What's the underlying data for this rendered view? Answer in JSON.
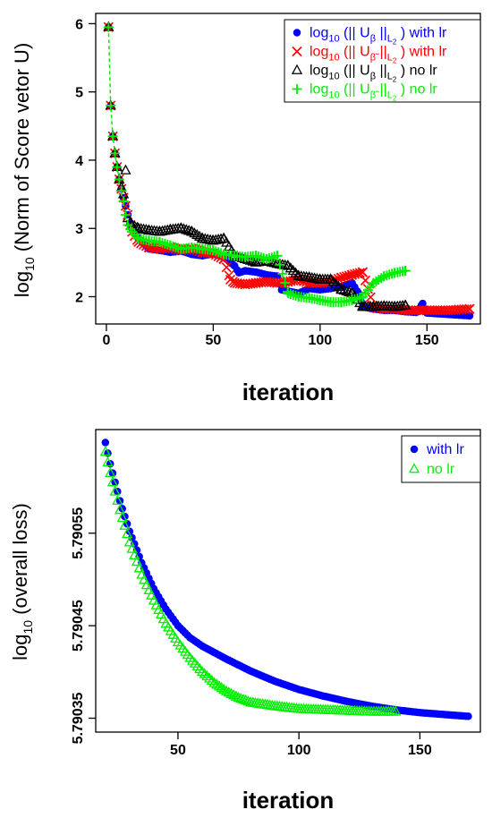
{
  "colors": {
    "blue": "#0000ff",
    "red": "#ff0000",
    "black": "#000000",
    "green": "#00ee00"
  },
  "chart_data": [
    {
      "type": "scatter",
      "title": "",
      "xlabel": "iteration",
      "ylabel": "log10 (Norm of Score vetor U)",
      "ylabel_main": "log",
      "ylabel_sub": "10",
      "ylabel_rest": " (Norm of Score vetor U)",
      "xlim": [
        -5,
        175
      ],
      "ylim": [
        1.6,
        6.15
      ],
      "xticks": [
        0,
        50,
        100,
        150
      ],
      "yticks": [
        2,
        3,
        4,
        5,
        6
      ],
      "grid": false,
      "legend_position": "top-right",
      "series": [
        {
          "name": "log10 (|| Uβ ||L2 ) with lr",
          "label_rest": " with lr",
          "marker": "circle",
          "color": "blue",
          "x": [
            1,
            2,
            3,
            4,
            5,
            6,
            7,
            8,
            9,
            10,
            12,
            15,
            20,
            25,
            30,
            35,
            40,
            45,
            50,
            55,
            60,
            62,
            65,
            70,
            75,
            80,
            82,
            85,
            90,
            95,
            100,
            105,
            110,
            115,
            118,
            120,
            125,
            130,
            135,
            140,
            145,
            148,
            150,
            155,
            160,
            165,
            170
          ],
          "y": [
            5.95,
            4.8,
            4.35,
            4.1,
            3.9,
            3.72,
            3.58,
            3.45,
            3.33,
            3.2,
            3.0,
            2.85,
            2.7,
            2.68,
            2.65,
            2.67,
            2.62,
            2.6,
            2.63,
            2.58,
            2.45,
            2.35,
            2.38,
            2.36,
            2.32,
            2.3,
            2.1,
            2.08,
            2.05,
            2.12,
            2.1,
            2.12,
            2.15,
            2.2,
            2.05,
            1.85,
            1.82,
            1.8,
            1.8,
            1.78,
            1.77,
            1.9,
            1.76,
            1.75,
            1.74,
            1.73,
            1.72
          ]
        },
        {
          "name": "log10 (|| Uβ̃ ||L2 ) with lr",
          "label_rest": " with lr",
          "marker": "cross",
          "color": "red",
          "x": [
            1,
            2,
            3,
            4,
            5,
            6,
            7,
            8,
            9,
            10,
            12,
            15,
            20,
            25,
            30,
            35,
            40,
            45,
            50,
            55,
            58,
            60,
            65,
            70,
            75,
            80,
            85,
            90,
            95,
            100,
            105,
            110,
            115,
            120,
            125,
            130,
            135,
            140,
            145,
            150,
            155,
            160,
            165,
            170
          ],
          "y": [
            5.95,
            4.8,
            4.35,
            4.1,
            3.9,
            3.72,
            3.58,
            3.45,
            3.33,
            3.2,
            2.95,
            2.8,
            2.72,
            2.7,
            2.72,
            2.68,
            2.7,
            2.65,
            2.63,
            2.55,
            2.25,
            2.2,
            2.18,
            2.2,
            2.22,
            2.2,
            2.22,
            2.25,
            2.2,
            2.2,
            2.22,
            2.28,
            2.32,
            2.36,
            1.85,
            1.82,
            1.82,
            1.8,
            1.8,
            1.8,
            1.8,
            1.8,
            1.81,
            1.82
          ]
        },
        {
          "name": "log10 (|| Uβ ||L2 ) no lr",
          "label_rest": " no lr",
          "marker": "triangle",
          "color": "black",
          "x": [
            1,
            2,
            3,
            4,
            5,
            6,
            7,
            8,
            9,
            10,
            12,
            15,
            20,
            25,
            30,
            35,
            40,
            45,
            50,
            55,
            60,
            65,
            70,
            75,
            80,
            85,
            90,
            95,
            100,
            105,
            110,
            115,
            120,
            125,
            130,
            135,
            140
          ],
          "y": [
            5.95,
            4.8,
            4.35,
            4.1,
            3.9,
            3.72,
            3.6,
            3.5,
            3.85,
            3.15,
            3.05,
            3.0,
            2.97,
            2.95,
            2.98,
            3.0,
            2.95,
            2.85,
            2.82,
            2.85,
            2.6,
            2.55,
            2.5,
            2.52,
            2.48,
            2.45,
            2.3,
            2.28,
            2.25,
            2.25,
            2.1,
            2.05,
            1.85,
            1.85,
            1.86,
            1.85,
            1.87
          ]
        },
        {
          "name": "log10 (|| Uβ̃ ||L2 ) no lr",
          "label_rest": " no lr",
          "marker": "plus",
          "color": "green",
          "x": [
            1,
            2,
            3,
            4,
            5,
            6,
            7,
            8,
            9,
            10,
            12,
            15,
            20,
            25,
            30,
            35,
            40,
            45,
            50,
            55,
            60,
            65,
            70,
            75,
            80,
            85,
            90,
            95,
            100,
            105,
            110,
            115,
            120,
            125,
            130,
            135,
            140
          ],
          "y": [
            5.95,
            4.8,
            4.35,
            4.1,
            3.9,
            3.72,
            3.55,
            3.4,
            3.2,
            3.05,
            2.95,
            2.85,
            2.82,
            2.8,
            2.75,
            2.7,
            2.72,
            2.7,
            2.68,
            2.62,
            2.6,
            2.58,
            2.6,
            2.55,
            2.6,
            2.05,
            2.0,
            1.98,
            1.95,
            1.92,
            1.92,
            1.95,
            2.0,
            2.2,
            2.3,
            2.35,
            2.38
          ]
        }
      ]
    },
    {
      "type": "scatter",
      "title": "",
      "xlabel": "iteration",
      "ylabel": "log10 (overall loss)",
      "ylabel_main": "log",
      "ylabel_sub": "10",
      "ylabel_rest": " (overall loss)",
      "xlim": [
        16,
        175
      ],
      "ylim": [
        5.790335,
        5.790662
      ],
      "xticks": [
        50,
        100,
        150
      ],
      "ytick_labels": [
        "5.79035",
        "5.79045",
        "5.79055"
      ],
      "ytick_values": [
        5.79035,
        5.79045,
        5.79055
      ],
      "grid": false,
      "legend_position": "top-right",
      "series": [
        {
          "name": "with lr",
          "marker": "circle",
          "color": "blue",
          "x": [
            20,
            22,
            24,
            26,
            28,
            30,
            35,
            40,
            45,
            50,
            55,
            60,
            70,
            80,
            90,
            100,
            110,
            120,
            130,
            140,
            150,
            160,
            170
          ],
          "y": [
            5.790648,
            5.790625,
            5.790605,
            5.790585,
            5.790568,
            5.790552,
            5.790518,
            5.79049,
            5.790468,
            5.79045,
            5.790437,
            5.790428,
            5.790414,
            5.790401,
            5.79039,
            5.790381,
            5.790374,
            5.790368,
            5.790363,
            5.790359,
            5.790356,
            5.790354,
            5.790352
          ]
        },
        {
          "name": "no lr",
          "marker": "triangle",
          "color": "green",
          "x": [
            20,
            22,
            24,
            26,
            28,
            30,
            35,
            40,
            45,
            50,
            55,
            60,
            65,
            70,
            75,
            80,
            90,
            100,
            110,
            120,
            130,
            140
          ],
          "y": [
            5.790638,
            5.790615,
            5.790595,
            5.790575,
            5.790558,
            5.79054,
            5.790505,
            5.790477,
            5.790452,
            5.790432,
            5.790415,
            5.7904,
            5.790388,
            5.790379,
            5.790372,
            5.790367,
            5.790363,
            5.79036,
            5.790359,
            5.790358,
            5.790357,
            5.790357
          ]
        }
      ]
    }
  ]
}
